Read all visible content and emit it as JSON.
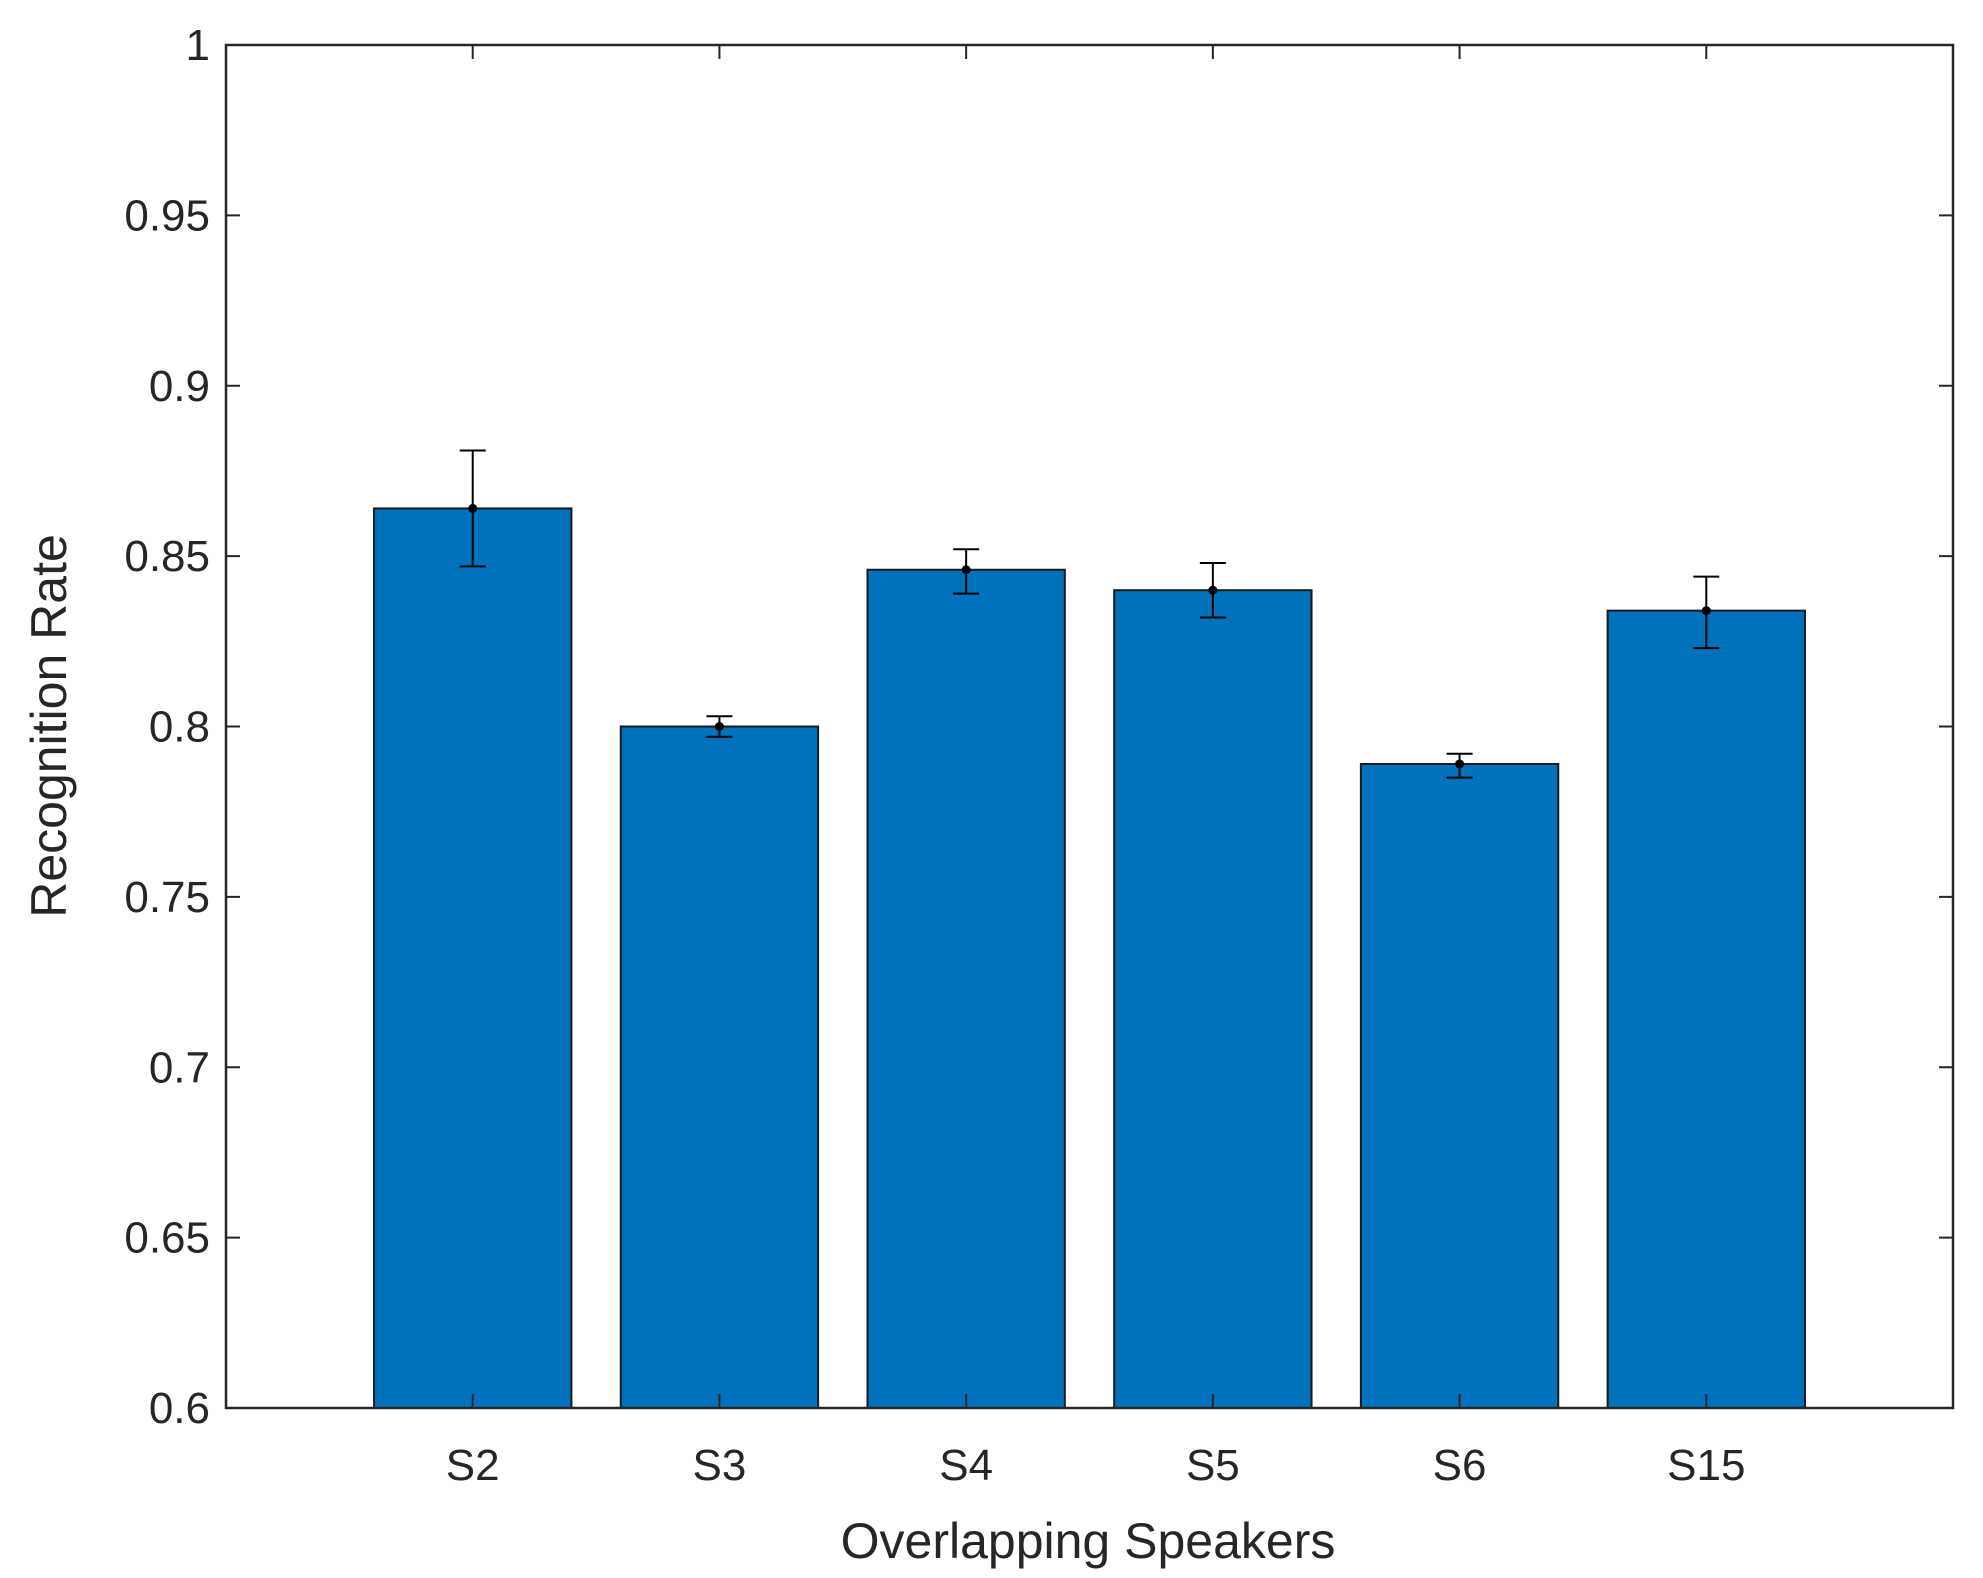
{
  "chart_data": {
    "type": "bar",
    "title": "",
    "xlabel": "Overlapping Speakers",
    "ylabel": "Recognition Rate",
    "categories": [
      "S2",
      "S3",
      "S4",
      "S5",
      "S6",
      "S15"
    ],
    "series": [
      {
        "values": [
          0.864,
          0.8,
          0.846,
          0.84,
          0.789,
          0.834
        ],
        "error_low": [
          0.847,
          0.797,
          0.839,
          0.832,
          0.785,
          0.823
        ],
        "error_high": [
          0.881,
          0.803,
          0.852,
          0.848,
          0.792,
          0.844
        ]
      }
    ],
    "ylim": [
      0.6,
      1
    ],
    "yticks": [
      "0.6",
      "0.65",
      "0.7",
      "0.75",
      "0.8",
      "0.85",
      "0.9",
      "0.95",
      "1"
    ],
    "grid": false,
    "colors": {
      "bar": "#0072BD",
      "bar_edge": "#1a1a1a",
      "axis": "#262626",
      "error_bar": "#000000"
    }
  }
}
